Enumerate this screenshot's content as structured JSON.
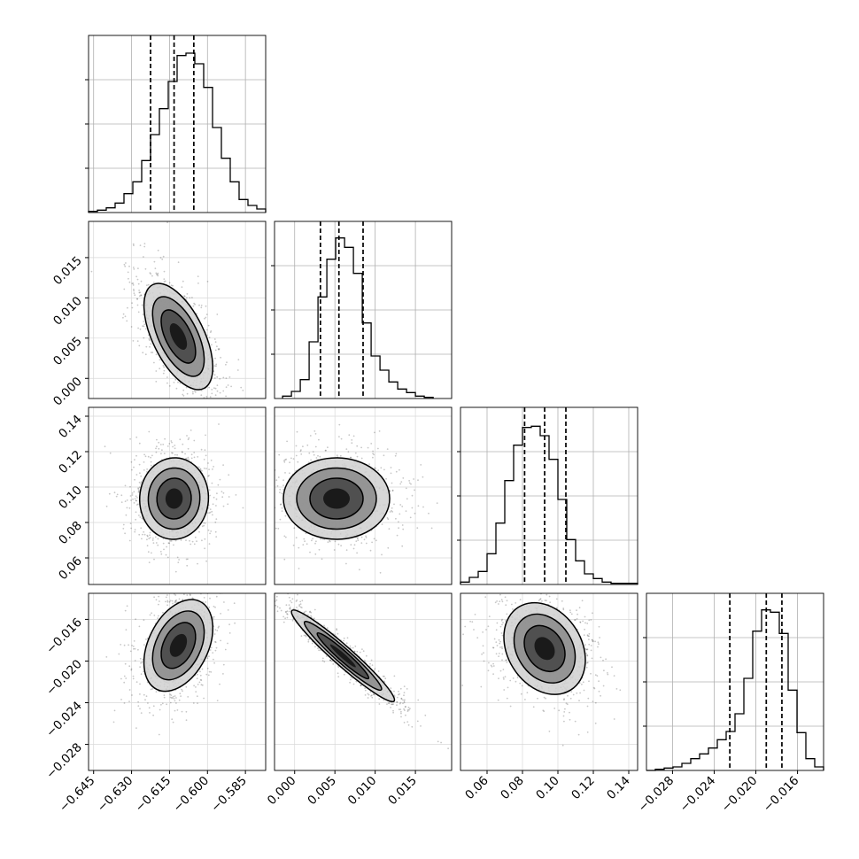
{
  "chart_data": {
    "type": "corner",
    "parameters": 4,
    "axis_ticks": [
      [
        "−0.645",
        "−0.630",
        "−0.615",
        "−0.600",
        "−0.585"
      ],
      [
        "0.000",
        "0.005",
        "0.010",
        "0.015"
      ],
      [
        "0.06",
        "0.08",
        "0.10",
        "0.12",
        "0.14"
      ],
      [
        "−0.028",
        "−0.024",
        "−0.020",
        "−0.016"
      ]
    ],
    "left_axis_ticks": [
      [
        "0.000",
        "0.005",
        "0.010",
        "0.015"
      ],
      [
        "0.06",
        "0.08",
        "0.10",
        "0.12",
        "0.14"
      ],
      [
        "−0.028",
        "−0.024",
        "−0.020",
        "−0.016"
      ]
    ],
    "histograms": [
      {
        "param": 0,
        "xlim": [
          -0.647,
          -0.577
        ],
        "bin_edges_start": -0.647,
        "bin_width": 0.0035,
        "counts": [
          1,
          2,
          4,
          8,
          16,
          26,
          44,
          66,
          88,
          111,
          133,
          135,
          126,
          106,
          72,
          46,
          26,
          11,
          6,
          3
        ],
        "ylim": [
          0,
          150
        ],
        "quantiles": [
          -0.6225,
          -0.6132,
          -0.6054
        ]
      },
      {
        "param": 1,
        "xlim": [
          -0.0025,
          0.0195
        ],
        "bin_edges_start": -0.0015,
        "bin_width": 0.0011,
        "counts": [
          2,
          6,
          16,
          48,
          86,
          118,
          136,
          128,
          106,
          64,
          36,
          24,
          14,
          8,
          5,
          2,
          1
        ],
        "ylim": [
          0,
          150
        ],
        "quantiles": [
          0.0032,
          0.0055,
          0.0085
        ]
      },
      {
        "param": 2,
        "xlim": [
          0.045,
          0.145
        ],
        "bin_edges_start": 0.045,
        "bin_width": 0.005,
        "counts": [
          2,
          6,
          11,
          26,
          52,
          88,
          118,
          133,
          134,
          126,
          106,
          72,
          38,
          20,
          9,
          5,
          2,
          1,
          1,
          1
        ],
        "ylim": [
          0,
          150
        ],
        "quantiles": [
          0.0812,
          0.0925,
          0.1045
        ]
      },
      {
        "param": 3,
        "xlim": [
          -0.0305,
          -0.0135
        ],
        "bin_edges_start": -0.0305,
        "bin_width": 0.00085,
        "counts": [
          0,
          1,
          2,
          3,
          6,
          10,
          14,
          19,
          26,
          33,
          48,
          78,
          118,
          136,
          134,
          116,
          68,
          32,
          10,
          3
        ],
        "ylim": [
          0,
          150
        ],
        "quantiles": [
          -0.0225,
          -0.019,
          -0.0175
        ]
      }
    ],
    "pairs": [
      {
        "row": 1,
        "col": 0,
        "mean": [
          -0.6115,
          0.0052
        ],
        "std": [
          0.0068,
          0.0033
        ],
        "corr": -0.58
      },
      {
        "row": 2,
        "col": 0,
        "mean": [
          -0.6132,
          0.0935
        ],
        "std": [
          0.0068,
          0.0115
        ],
        "corr": 0.02
      },
      {
        "row": 2,
        "col": 1,
        "mean": [
          0.0052,
          0.0935
        ],
        "std": [
          0.0033,
          0.0115
        ],
        "corr": 0.0
      },
      {
        "row": 3,
        "col": 0,
        "mean": [
          -0.6115,
          -0.0185
        ],
        "std": [
          0.0068,
          0.0022
        ],
        "corr": 0.38
      },
      {
        "row": 3,
        "col": 1,
        "mean": [
          0.006,
          -0.0195
        ],
        "std": [
          0.0032,
          0.0022
        ],
        "corr": -0.96
      },
      {
        "row": 3,
        "col": 2,
        "mean": [
          0.0925,
          -0.0188
        ],
        "std": [
          0.0115,
          0.0022
        ],
        "corr": -0.25
      }
    ],
    "contour_levels_sigma": [
      0.5,
      1.0,
      1.5,
      2.0
    ],
    "grid": true
  }
}
